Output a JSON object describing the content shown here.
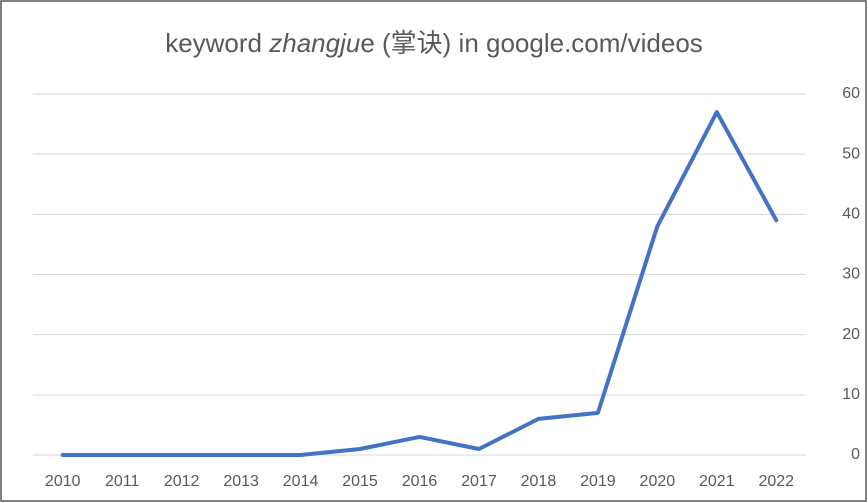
{
  "chart_data": {
    "type": "line",
    "title": [
      {
        "text": "keyword "
      },
      {
        "text": "zhangju",
        "style": "italic"
      },
      {
        "text": "e (掌诀) in google.com/videos"
      }
    ],
    "categories": [
      "2010",
      "2011",
      "2012",
      "2013",
      "2014",
      "2015",
      "2016",
      "2017",
      "2018",
      "2019",
      "2020",
      "2021",
      "2022"
    ],
    "values": [
      0,
      0,
      0,
      0,
      0,
      1,
      3,
      1,
      6,
      7,
      38,
      57,
      39
    ],
    "color": "#4472c4",
    "ylim": [
      0,
      60
    ],
    "yticks": [
      0,
      10,
      20,
      30,
      40,
      50,
      60
    ],
    "y_axis_side": "right",
    "grid": true
  }
}
